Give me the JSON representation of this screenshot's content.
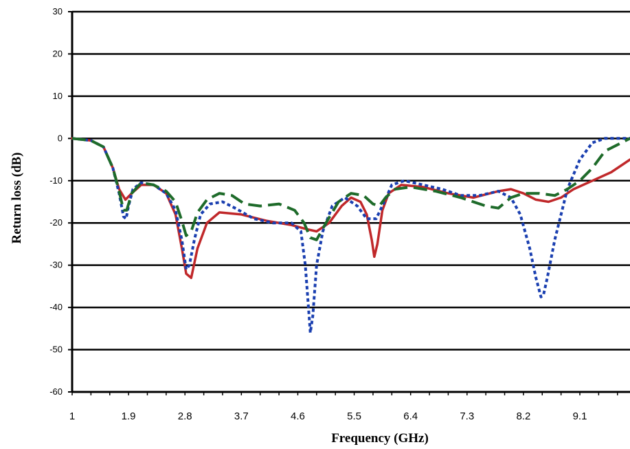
{
  "chart_data": {
    "type": "line",
    "xlabel": "Frequency (GHz)",
    "ylabel": "Return loss (dB)",
    "x_ticks": [
      "1",
      "1.9",
      "2.8",
      "3.7",
      "4.6",
      "5.5",
      "6.4",
      "7.3",
      "8.2",
      "9.1"
    ],
    "y_ticks": [
      30,
      20,
      10,
      0,
      -10,
      -20,
      -30,
      -40,
      -50,
      -60
    ],
    "xlim": [
      1,
      9.9
    ],
    "ylim": [
      -60,
      30
    ],
    "grid": "horizontal",
    "legend": "none",
    "series": [
      {
        "style": "solid",
        "color": "#c0282a",
        "x": [
          1.0,
          1.3,
          1.5,
          1.65,
          1.75,
          1.85,
          1.95,
          2.1,
          2.3,
          2.5,
          2.65,
          2.75,
          2.82,
          2.9,
          3.0,
          3.15,
          3.35,
          3.7,
          4.1,
          4.5,
          4.75,
          4.9,
          5.1,
          5.3,
          5.45,
          5.6,
          5.7,
          5.78,
          5.82,
          5.87,
          5.95,
          6.05,
          6.25,
          6.6,
          7.0,
          7.4,
          7.8,
          8.0,
          8.2,
          8.4,
          8.6,
          8.8,
          9.0,
          9.3,
          9.6,
          9.9
        ],
        "y": [
          0,
          -0.5,
          -2,
          -7,
          -12,
          -14.5,
          -13,
          -11,
          -11,
          -13,
          -18,
          -26,
          -32,
          -33,
          -26,
          -20,
          -17.5,
          -18,
          -19.5,
          -20.5,
          -21.5,
          -22,
          -20,
          -16,
          -14,
          -15,
          -18,
          -24,
          -28,
          -25,
          -17,
          -13,
          -11,
          -11.5,
          -13,
          -14,
          -12.5,
          -12,
          -13,
          -14.5,
          -15,
          -14,
          -12,
          -10,
          -8,
          -5
        ]
      },
      {
        "style": "dotted",
        "color": "#1a3fb0",
        "x": [
          1.0,
          1.3,
          1.5,
          1.65,
          1.75,
          1.82,
          1.86,
          1.9,
          1.97,
          2.1,
          2.3,
          2.5,
          2.65,
          2.75,
          2.82,
          2.87,
          2.95,
          3.05,
          3.2,
          3.4,
          3.6,
          3.9,
          4.2,
          4.5,
          4.65,
          4.72,
          4.77,
          4.8,
          4.84,
          4.9,
          5.0,
          5.15,
          5.35,
          5.55,
          5.7,
          5.85,
          5.98,
          6.1,
          6.3,
          6.6,
          6.9,
          7.2,
          7.5,
          7.8,
          8.0,
          8.15,
          8.3,
          8.4,
          8.48,
          8.52,
          8.58,
          8.7,
          8.9,
          9.1,
          9.3,
          9.5,
          9.7,
          9.9
        ],
        "y": [
          0,
          -0.5,
          -2,
          -7,
          -13,
          -18.5,
          -19,
          -16,
          -12,
          -10.5,
          -11,
          -13,
          -17,
          -24,
          -31,
          -30,
          -24,
          -18,
          -15.5,
          -15,
          -16.5,
          -19,
          -20,
          -20,
          -22,
          -30,
          -40,
          -46,
          -42,
          -30,
          -22,
          -16,
          -14,
          -16,
          -19,
          -19,
          -15,
          -11,
          -10,
          -11,
          -12,
          -13.5,
          -13.5,
          -12.5,
          -14,
          -18,
          -26,
          -33,
          -37.5,
          -37,
          -33,
          -24,
          -12,
          -5,
          -1,
          0,
          0,
          0
        ]
      },
      {
        "style": "dashed",
        "color": "#1e6b2a",
        "x": [
          1.0,
          1.3,
          1.5,
          1.65,
          1.75,
          1.82,
          1.87,
          1.95,
          2.1,
          2.3,
          2.5,
          2.65,
          2.75,
          2.82,
          2.9,
          3.0,
          3.15,
          3.35,
          3.55,
          3.75,
          4.0,
          4.3,
          4.55,
          4.7,
          4.8,
          4.9,
          5.05,
          5.25,
          5.45,
          5.65,
          5.8,
          5.9,
          6.0,
          6.15,
          6.4,
          6.8,
          7.2,
          7.6,
          7.8,
          8.0,
          8.2,
          8.45,
          8.7,
          8.9,
          9.1,
          9.3,
          9.5,
          9.9
        ],
        "y": [
          0,
          -0.5,
          -2,
          -7,
          -12.5,
          -17,
          -17,
          -13,
          -10.5,
          -11,
          -12.5,
          -15,
          -19.5,
          -23,
          -22,
          -17.5,
          -14.5,
          -13,
          -13.5,
          -15.5,
          -16,
          -15.5,
          -17,
          -20,
          -23.5,
          -24,
          -20,
          -15,
          -13,
          -13.5,
          -15.5,
          -16,
          -14,
          -12,
          -11.5,
          -12.5,
          -14,
          -16,
          -16.5,
          -14,
          -13,
          -13,
          -13.5,
          -12,
          -10,
          -7,
          -3,
          0
        ]
      }
    ]
  }
}
